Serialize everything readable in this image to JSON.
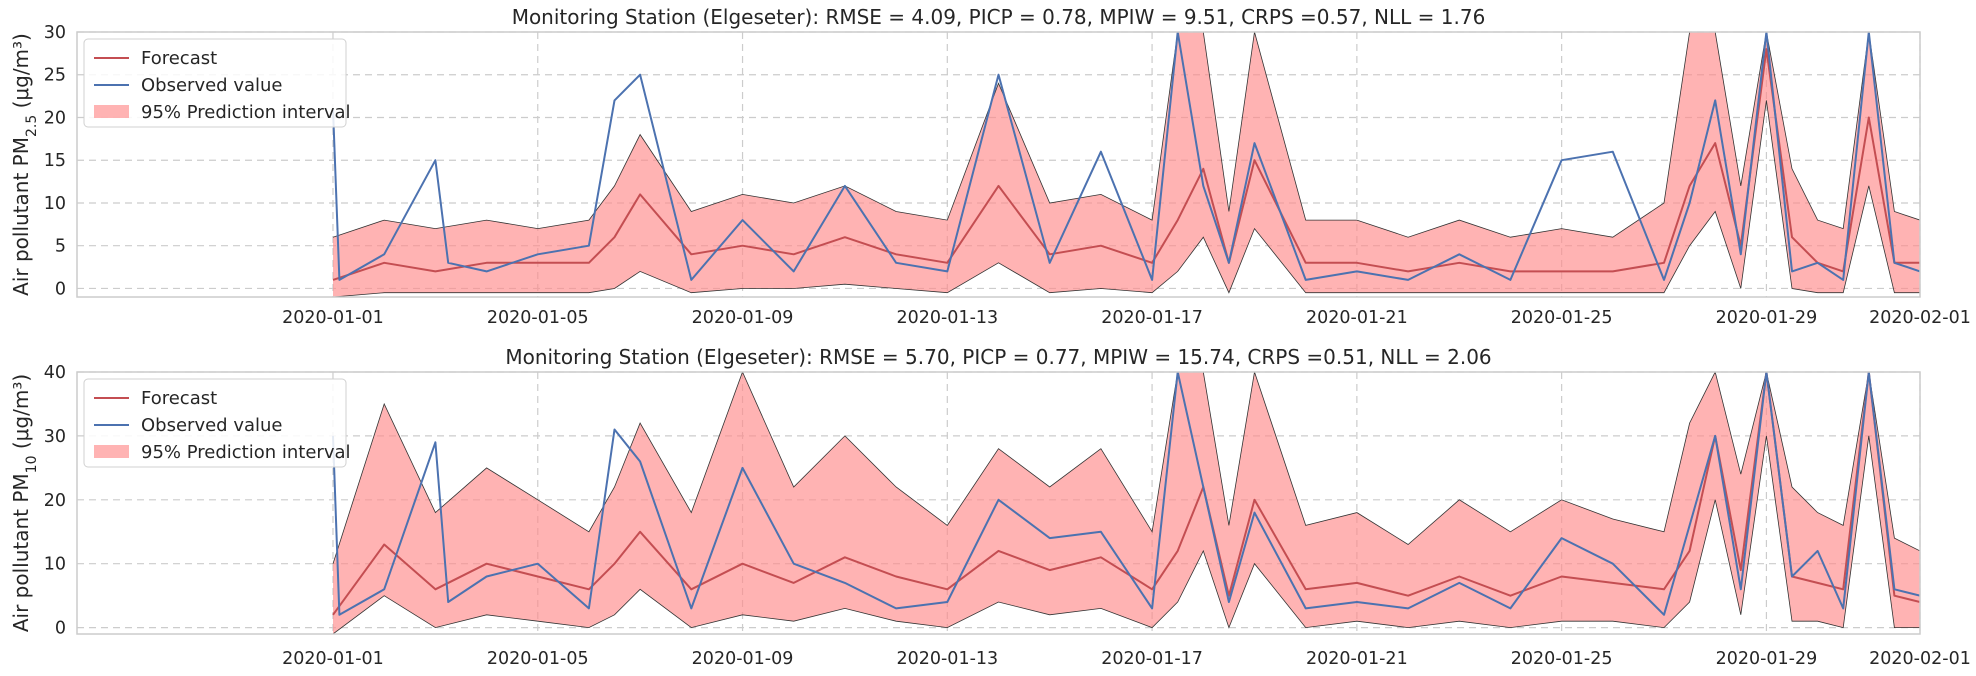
{
  "chart_data": [
    {
      "type": "line",
      "title": "Monitoring Station (Elgeseter): RMSE = 4.09, PICP = 0.78, MPIW = 9.51, CRPS =0.57, NLL = 1.76",
      "ylabel_prefix": "Air pollutant PM",
      "ylabel_sub": "2.5",
      "ylabel_unit": " (μg/m³)",
      "ylim": [
        -1,
        30
      ],
      "yticks": [
        0,
        5,
        10,
        15,
        20,
        25,
        30
      ],
      "ytick_labels": [
        "0",
        "5",
        "10",
        "15",
        "20",
        "25",
        "30"
      ],
      "xlim": [
        "2019-12-27",
        "2020-02-01"
      ],
      "xticks": [
        "2020-01-01",
        "2020-01-05",
        "2020-01-09",
        "2020-01-13",
        "2020-01-17",
        "2020-01-21",
        "2020-01-25",
        "2020-01-29",
        "2020-02-01"
      ],
      "grid": true,
      "legend": {
        "position": "upper-left",
        "entries": [
          "Forecast",
          "Observed value",
          "95% Prediction interval"
        ]
      },
      "series": [
        {
          "name": "Forecast",
          "color": "#c44e52",
          "x": [
            "2020-01-01",
            "2020-01-02",
            "2020-01-03",
            "2020-01-04",
            "2020-01-05",
            "2020-01-06",
            "2020-01-06T12",
            "2020-01-07",
            "2020-01-08",
            "2020-01-09",
            "2020-01-10",
            "2020-01-11",
            "2020-01-12",
            "2020-01-13",
            "2020-01-14",
            "2020-01-15",
            "2020-01-16",
            "2020-01-17",
            "2020-01-17T12",
            "2020-01-18",
            "2020-01-18T12",
            "2020-01-19",
            "2020-01-20",
            "2020-01-21",
            "2020-01-22",
            "2020-01-23",
            "2020-01-24",
            "2020-01-25",
            "2020-01-26",
            "2020-01-27",
            "2020-01-27T12",
            "2020-01-28",
            "2020-01-28T12",
            "2020-01-29",
            "2020-01-29T12",
            "2020-01-30",
            "2020-01-30T12",
            "2020-01-31",
            "2020-01-31T12",
            "2020-02-01"
          ],
          "values": [
            1,
            3,
            2,
            3,
            3,
            3,
            6,
            11,
            4,
            5,
            4,
            6,
            4,
            3,
            12,
            4,
            5,
            3,
            8,
            14,
            3,
            15,
            3,
            3,
            2,
            3,
            2,
            2,
            2,
            3,
            12,
            17,
            5,
            28,
            6,
            3,
            2,
            20,
            3,
            3
          ]
        },
        {
          "name": "Observed value",
          "color": "#4c72b0",
          "x": [
            "2020-01-01",
            "2020-01-01T03",
            "2020-01-02",
            "2020-01-03",
            "2020-01-03T06",
            "2020-01-04",
            "2020-01-05",
            "2020-01-06",
            "2020-01-06T12",
            "2020-01-07",
            "2020-01-08",
            "2020-01-09",
            "2020-01-10",
            "2020-01-11",
            "2020-01-12",
            "2020-01-13",
            "2020-01-14",
            "2020-01-15",
            "2020-01-16",
            "2020-01-17",
            "2020-01-17T12",
            "2020-01-18",
            "2020-01-18T12",
            "2020-01-19",
            "2020-01-20",
            "2020-01-21",
            "2020-01-22",
            "2020-01-23",
            "2020-01-24",
            "2020-01-25",
            "2020-01-26",
            "2020-01-27",
            "2020-01-27T12",
            "2020-01-28",
            "2020-01-28T12",
            "2020-01-29",
            "2020-01-29T12",
            "2020-01-30",
            "2020-01-30T12",
            "2020-01-31",
            "2020-01-31T12",
            "2020-02-01"
          ],
          "values": [
            21,
            1,
            4,
            15,
            3,
            2,
            4,
            5,
            22,
            25,
            1,
            8,
            2,
            12,
            3,
            2,
            25,
            3,
            16,
            1,
            30,
            12,
            3,
            17,
            1,
            2,
            1,
            4,
            1,
            15,
            16,
            1,
            10,
            22,
            4,
            30,
            2,
            3,
            1,
            30,
            3,
            2
          ]
        }
      ],
      "interval": {
        "name": "95% Prediction interval",
        "color": "#ff8a8a",
        "x": [
          "2020-01-01",
          "2020-01-02",
          "2020-01-03",
          "2020-01-04",
          "2020-01-05",
          "2020-01-06",
          "2020-01-06T12",
          "2020-01-07",
          "2020-01-08",
          "2020-01-09",
          "2020-01-10",
          "2020-01-11",
          "2020-01-12",
          "2020-01-13",
          "2020-01-14",
          "2020-01-15",
          "2020-01-16",
          "2020-01-17",
          "2020-01-17T12",
          "2020-01-18",
          "2020-01-18T12",
          "2020-01-19",
          "2020-01-20",
          "2020-01-21",
          "2020-01-22",
          "2020-01-23",
          "2020-01-24",
          "2020-01-25",
          "2020-01-26",
          "2020-01-27",
          "2020-01-27T12",
          "2020-01-28",
          "2020-01-28T12",
          "2020-01-29",
          "2020-01-29T12",
          "2020-01-30",
          "2020-01-30T12",
          "2020-01-31",
          "2020-01-31T12",
          "2020-02-01"
        ],
        "lower": [
          -1,
          -0.5,
          -0.5,
          -0.5,
          -0.5,
          -0.5,
          0,
          2,
          -0.5,
          0,
          0,
          0.5,
          0,
          -0.5,
          3,
          -0.5,
          0,
          -0.5,
          2,
          6,
          -0.5,
          7,
          -0.5,
          -0.5,
          -0.5,
          -0.5,
          -0.5,
          -0.5,
          -0.5,
          -0.5,
          5,
          9,
          0,
          22,
          0,
          -0.5,
          -0.5,
          12,
          -0.5,
          -0.5
        ],
        "upper": [
          6,
          8,
          7,
          8,
          7,
          8,
          12,
          18,
          9,
          11,
          10,
          12,
          9,
          8,
          24,
          10,
          11,
          8,
          30,
          30,
          9,
          30,
          8,
          8,
          6,
          8,
          6,
          7,
          6,
          10,
          30,
          30,
          12,
          30,
          14,
          8,
          7,
          30,
          9,
          8
        ]
      }
    },
    {
      "type": "line",
      "title": "Monitoring Station (Elgeseter): RMSE = 5.70, PICP = 0.77, MPIW = 15.74, CRPS =0.51, NLL = 2.06",
      "ylabel_prefix": "Air pollutant PM",
      "ylabel_sub": "10",
      "ylabel_unit": " (μg/m³)",
      "ylim": [
        -1,
        40
      ],
      "yticks": [
        0,
        10,
        20,
        30,
        40
      ],
      "ytick_labels": [
        "0",
        "10",
        "20",
        "30",
        "40"
      ],
      "xlim": [
        "2019-12-27",
        "2020-02-01"
      ],
      "xticks": [
        "2020-01-01",
        "2020-01-05",
        "2020-01-09",
        "2020-01-13",
        "2020-01-17",
        "2020-01-21",
        "2020-01-25",
        "2020-01-29",
        "2020-02-01"
      ],
      "grid": true,
      "legend": {
        "position": "upper-left",
        "entries": [
          "Forecast",
          "Observed value",
          "95% Prediction interval"
        ]
      },
      "series": [
        {
          "name": "Forecast",
          "color": "#c44e52",
          "x": [
            "2020-01-01",
            "2020-01-02",
            "2020-01-03",
            "2020-01-04",
            "2020-01-05",
            "2020-01-06",
            "2020-01-06T12",
            "2020-01-07",
            "2020-01-08",
            "2020-01-09",
            "2020-01-10",
            "2020-01-11",
            "2020-01-12",
            "2020-01-13",
            "2020-01-14",
            "2020-01-15",
            "2020-01-16",
            "2020-01-17",
            "2020-01-17T12",
            "2020-01-18",
            "2020-01-18T12",
            "2020-01-19",
            "2020-01-20",
            "2020-01-21",
            "2020-01-22",
            "2020-01-23",
            "2020-01-24",
            "2020-01-25",
            "2020-01-26",
            "2020-01-27",
            "2020-01-27T12",
            "2020-01-28",
            "2020-01-28T12",
            "2020-01-29",
            "2020-01-29T12",
            "2020-01-30",
            "2020-01-30T12",
            "2020-01-31",
            "2020-01-31T12",
            "2020-02-01"
          ],
          "values": [
            2,
            13,
            6,
            10,
            8,
            6,
            10,
            15,
            6,
            10,
            7,
            11,
            8,
            6,
            12,
            9,
            11,
            6,
            12,
            22,
            5,
            20,
            6,
            7,
            5,
            8,
            5,
            8,
            7,
            6,
            12,
            30,
            9,
            40,
            8,
            7,
            6,
            40,
            5,
            4
          ]
        },
        {
          "name": "Observed value",
          "color": "#4c72b0",
          "x": [
            "2020-01-01",
            "2020-01-01T03",
            "2020-01-02",
            "2020-01-03",
            "2020-01-03T06",
            "2020-01-04",
            "2020-01-05",
            "2020-01-06",
            "2020-01-06T12",
            "2020-01-07",
            "2020-01-08",
            "2020-01-09",
            "2020-01-10",
            "2020-01-11",
            "2020-01-12",
            "2020-01-13",
            "2020-01-14",
            "2020-01-15",
            "2020-01-16",
            "2020-01-17",
            "2020-01-17T12",
            "2020-01-18",
            "2020-01-18T12",
            "2020-01-19",
            "2020-01-20",
            "2020-01-21",
            "2020-01-22",
            "2020-01-23",
            "2020-01-24",
            "2020-01-25",
            "2020-01-26",
            "2020-01-27",
            "2020-01-27T12",
            "2020-01-28",
            "2020-01-28T12",
            "2020-01-29",
            "2020-01-29T12",
            "2020-01-30",
            "2020-01-30T12",
            "2020-01-31",
            "2020-01-31T12",
            "2020-02-01"
          ],
          "values": [
            30,
            2,
            6,
            29,
            4,
            8,
            10,
            3,
            31,
            26,
            3,
            25,
            10,
            7,
            3,
            4,
            20,
            14,
            15,
            3,
            40,
            22,
            4,
            18,
            3,
            4,
            3,
            7,
            3,
            14,
            10,
            2,
            16,
            30,
            6,
            40,
            8,
            12,
            3,
            40,
            6,
            5
          ]
        }
      ],
      "interval": {
        "name": "95% Prediction interval",
        "color": "#ff8a8a",
        "x": [
          "2020-01-01",
          "2020-01-02",
          "2020-01-03",
          "2020-01-04",
          "2020-01-05",
          "2020-01-06",
          "2020-01-06T12",
          "2020-01-07",
          "2020-01-08",
          "2020-01-09",
          "2020-01-10",
          "2020-01-11",
          "2020-01-12",
          "2020-01-13",
          "2020-01-14",
          "2020-01-15",
          "2020-01-16",
          "2020-01-17",
          "2020-01-17T12",
          "2020-01-18",
          "2020-01-18T12",
          "2020-01-19",
          "2020-01-20",
          "2020-01-21",
          "2020-01-22",
          "2020-01-23",
          "2020-01-24",
          "2020-01-25",
          "2020-01-26",
          "2020-01-27",
          "2020-01-27T12",
          "2020-01-28",
          "2020-01-28T12",
          "2020-01-29",
          "2020-01-29T12",
          "2020-01-30",
          "2020-01-30T12",
          "2020-01-31",
          "2020-01-31T12",
          "2020-02-01"
        ],
        "lower": [
          -1,
          5,
          0,
          2,
          1,
          0,
          2,
          6,
          0,
          2,
          1,
          3,
          1,
          0,
          4,
          2,
          3,
          0,
          4,
          12,
          0,
          10,
          0,
          1,
          0,
          1,
          0,
          1,
          1,
          0,
          4,
          20,
          2,
          30,
          1,
          1,
          0,
          30,
          0,
          0
        ],
        "upper": [
          10,
          35,
          18,
          25,
          20,
          15,
          22,
          32,
          18,
          40,
          22,
          30,
          22,
          16,
          28,
          22,
          28,
          15,
          40,
          40,
          16,
          40,
          16,
          18,
          13,
          20,
          15,
          20,
          17,
          15,
          32,
          40,
          24,
          40,
          22,
          18,
          16,
          40,
          14,
          12
        ]
      }
    }
  ]
}
